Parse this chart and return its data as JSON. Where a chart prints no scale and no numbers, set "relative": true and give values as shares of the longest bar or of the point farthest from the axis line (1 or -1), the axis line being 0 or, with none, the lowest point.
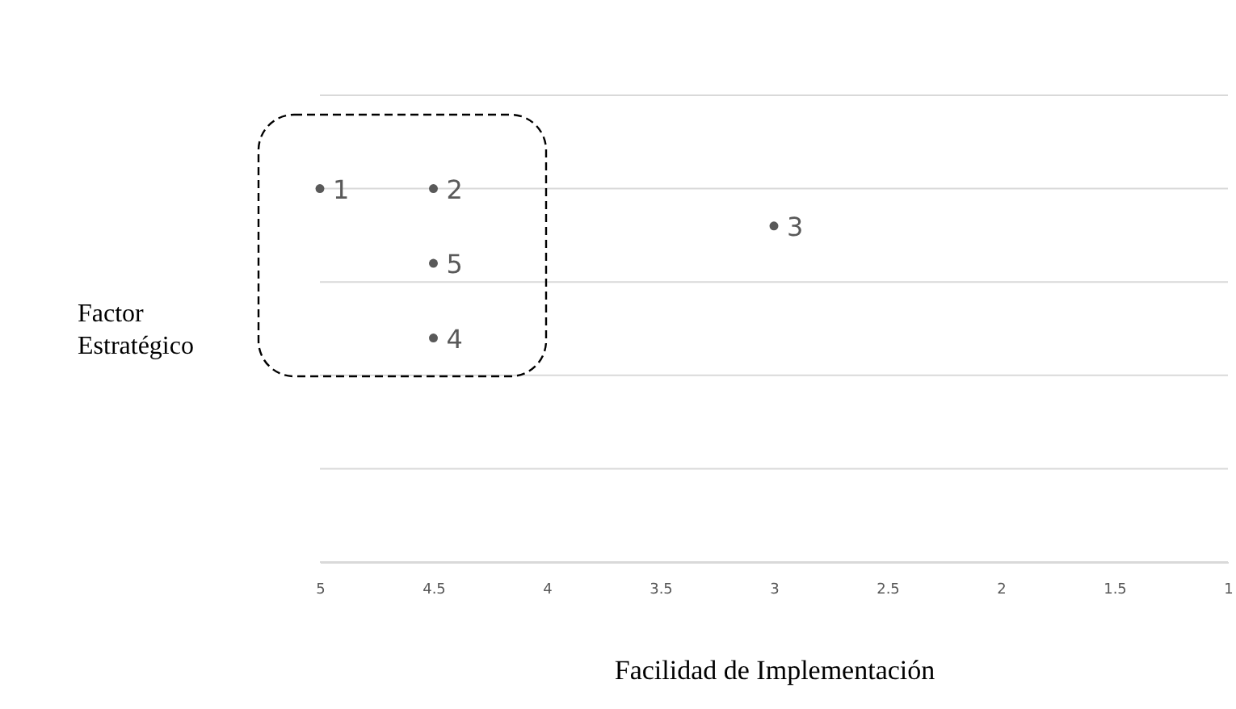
{
  "chart_data": {
    "type": "scatter",
    "relative": true,
    "xlabel": "Facilidad de Implementación",
    "ylabel": "Factor\nEstratégico",
    "x": [
      5,
      4.5,
      3,
      4.5,
      4.5
    ],
    "series": [
      {
        "color": "#595959",
        "values": [
          1,
          1,
          0.9,
          0.6,
          0.8
        ]
      }
    ],
    "xlim": [
      5,
      1
    ],
    "xticks": [
      5,
      4.5,
      4,
      3.5,
      3,
      2.5,
      2,
      1.5,
      1
    ],
    "annotations": [
      {
        "text": "1",
        "x": 5,
        "y": 1
      },
      {
        "text": "2",
        "x": 4.5,
        "y": 1
      },
      {
        "text": "3",
        "x": 3,
        "y": 0.9
      },
      {
        "text": "4",
        "x": 4.5,
        "y": 0.6
      },
      {
        "text": "5",
        "x": 4.5,
        "y": 0.8
      }
    ],
    "grid": "y",
    "marker": "circle"
  }
}
